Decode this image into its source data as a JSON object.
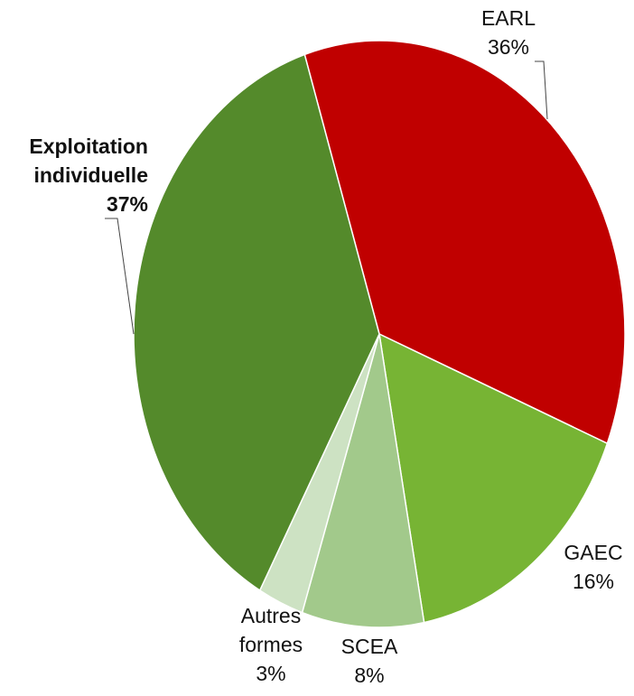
{
  "chart_data": {
    "type": "pie",
    "title": "",
    "slices": [
      {
        "label": "EARL",
        "value": 36,
        "display": "36%",
        "color": "#c00000"
      },
      {
        "label": "GAEC",
        "value": 16,
        "display": "16%",
        "color": "#77b434"
      },
      {
        "label": "SCEA",
        "value": 8,
        "display": "8%",
        "color": "#a2c98b"
      },
      {
        "label_lines": [
          "Autres",
          "formes"
        ],
        "value": 3,
        "display": "3%",
        "color": "#cde2c3"
      },
      {
        "label_lines": [
          "Exploitation",
          "individuelle"
        ],
        "value": 37,
        "display": "37%",
        "color": "#548a2b",
        "bold": true
      }
    ],
    "start_clockwise_from": "upper-left, slices ordered clockwise"
  }
}
